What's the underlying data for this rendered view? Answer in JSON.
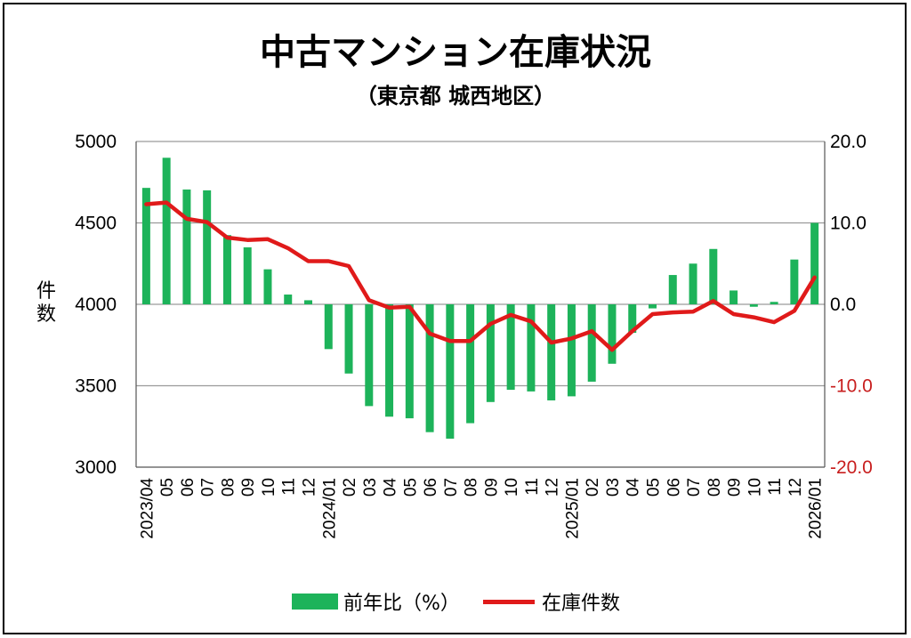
{
  "title": "中古マンション在庫状況",
  "subtitle": "（東京都 城西地区）",
  "colors": {
    "bar": "#1db35a",
    "line": "#e01a1a",
    "axis_right": "#c81e1e"
  },
  "chart_data": {
    "type": "bar+line",
    "categories": [
      "2023/04",
      "05",
      "06",
      "07",
      "08",
      "09",
      "10",
      "11",
      "12",
      "2024/01",
      "02",
      "03",
      "04",
      "05",
      "06",
      "07",
      "08",
      "09",
      "10",
      "11",
      "12",
      "2025/01",
      "02",
      "03",
      "04",
      "05",
      "06",
      "07",
      "08",
      "09",
      "10",
      "11",
      "12",
      "2026/01"
    ],
    "y_left": {
      "label": "件数",
      "range": [
        3000,
        5000
      ],
      "ticks": [
        "3000",
        "3500",
        "4000",
        "4500",
        "5000"
      ]
    },
    "y_right": {
      "label": "",
      "range": [
        -20,
        20
      ],
      "ticks": [
        "-20.0",
        "-10.0",
        "0.0",
        "10.0",
        "20.0"
      ]
    },
    "grid": true,
    "legend_position": "bottom",
    "series": [
      {
        "name": "前年比（%）",
        "type": "bar",
        "axis": "right",
        "values": [
          14.3,
          18.0,
          14.1,
          14.0,
          8.5,
          7.0,
          4.3,
          1.2,
          0.5,
          -5.5,
          -8.5,
          -12.5,
          -13.8,
          -14.0,
          -15.7,
          -16.5,
          -14.6,
          -12.0,
          -10.5,
          -10.7,
          -11.8,
          -11.3,
          -9.5,
          -7.3,
          -3.5,
          -0.5,
          3.6,
          5.0,
          6.8,
          1.7,
          -0.3,
          0.3,
          5.5,
          10.0
        ]
      },
      {
        "name": "在庫件数",
        "type": "line",
        "axis": "left",
        "values": [
          4615,
          4625,
          4525,
          4505,
          4410,
          4395,
          4400,
          4345,
          4265,
          4265,
          4235,
          4025,
          3980,
          3985,
          3820,
          3775,
          3775,
          3880,
          3935,
          3895,
          3765,
          3790,
          3835,
          3720,
          3835,
          3940,
          3950,
          3955,
          4020,
          3940,
          3920,
          3890,
          3960,
          4165
        ]
      }
    ]
  }
}
